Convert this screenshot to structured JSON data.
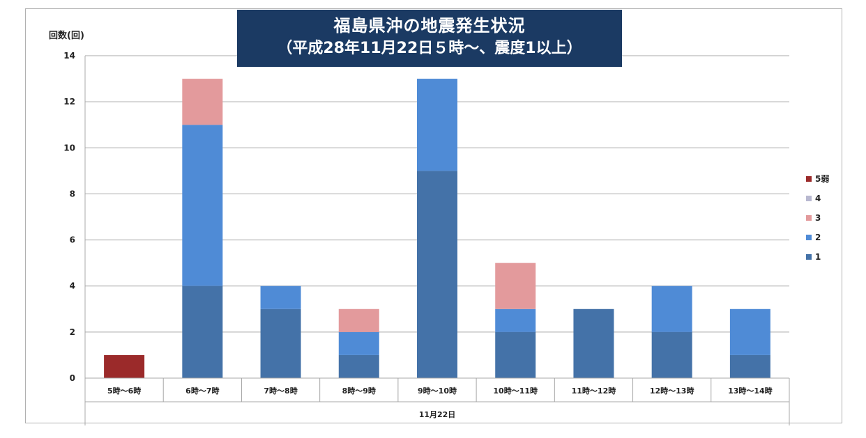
{
  "chart_data": {
    "type": "bar",
    "stacked": true,
    "title_line1": "福島県沖の地震発生状況",
    "title_line2": "（平成28年11月22日５時～、震度1以上）",
    "ylabel": "回数(回)",
    "xgroup_label": "11月22日",
    "ylim": [
      0,
      14
    ],
    "yticks": [
      0,
      2,
      4,
      6,
      8,
      10,
      12,
      14
    ],
    "grid": true,
    "legend_position": "right",
    "categories": [
      "5時～6時",
      "6時～7時",
      "7時～8時",
      "8時～9時",
      "9時～10時",
      "10時～11時",
      "11時～12時",
      "12時～13時",
      "13時～14時"
    ],
    "series": [
      {
        "name": "1",
        "color": "#4472a8",
        "values": [
          0,
          4,
          3,
          1,
          9,
          2,
          3,
          2,
          1
        ]
      },
      {
        "name": "2",
        "color": "#4f8bd6",
        "values": [
          0,
          7,
          1,
          1,
          4,
          1,
          0,
          2,
          2
        ]
      },
      {
        "name": "3",
        "color": "#e39a9c",
        "values": [
          0,
          2,
          0,
          1,
          0,
          2,
          0,
          0,
          0
        ]
      },
      {
        "name": "4",
        "color": "#b8b8d0",
        "values": [
          0,
          0,
          0,
          0,
          0,
          0,
          0,
          0,
          0
        ]
      },
      {
        "name": "5弱",
        "color": "#9b2a2a",
        "values": [
          1,
          0,
          0,
          0,
          0,
          0,
          0,
          0,
          0
        ]
      }
    ],
    "legend_order": [
      "5弱",
      "4",
      "3",
      "2",
      "1"
    ]
  }
}
